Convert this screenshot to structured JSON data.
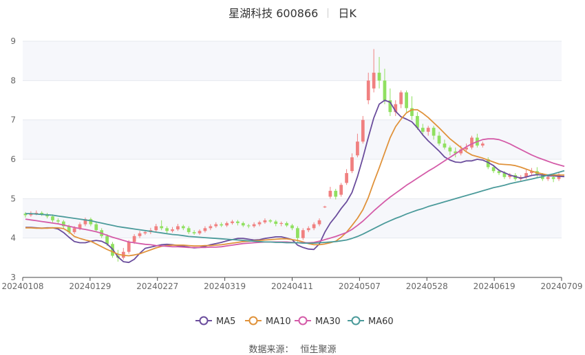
{
  "header": {
    "title": "星湖科技 600866",
    "period": "日K"
  },
  "source": {
    "label": "数据来源：",
    "value": "恒生聚源"
  },
  "colors": {
    "up": "#f08080",
    "down": "#90e060",
    "MA5": "#6a4c9c",
    "MA10": "#e0923a",
    "MA30": "#d45ba8",
    "MA60": "#4a9a9a",
    "grid": "#e6e8ee",
    "band": "#f6f7fb"
  },
  "chart_data": {
    "type": "candlestick",
    "ylim": [
      3,
      9
    ],
    "yticks": [
      3,
      4,
      5,
      6,
      7,
      8,
      9
    ],
    "xticks": [
      "20240108",
      "20240129",
      "20240227",
      "20240319",
      "20240411",
      "20240507",
      "20240528",
      "20240619",
      "20240709"
    ],
    "legend": [
      "MA5",
      "MA10",
      "MA30",
      "MA60"
    ],
    "legend_position": "bottom",
    "candles": [
      [
        4.62,
        4.58,
        4.66,
        4.52
      ],
      [
        4.58,
        4.62,
        4.68,
        4.54
      ],
      [
        4.62,
        4.64,
        4.7,
        4.58
      ],
      [
        4.64,
        4.6,
        4.68,
        4.56
      ],
      [
        4.6,
        4.55,
        4.64,
        4.5
      ],
      [
        4.55,
        4.45,
        4.6,
        4.4
      ],
      [
        4.45,
        4.42,
        4.5,
        4.36
      ],
      [
        4.42,
        4.3,
        4.46,
        4.25
      ],
      [
        4.3,
        4.15,
        4.34,
        4.1
      ],
      [
        4.15,
        4.25,
        4.3,
        4.1
      ],
      [
        4.25,
        4.35,
        4.4,
        4.2
      ],
      [
        4.35,
        4.48,
        4.52,
        4.3
      ],
      [
        4.48,
        4.35,
        4.52,
        4.3
      ],
      [
        4.35,
        4.2,
        4.4,
        4.15
      ],
      [
        4.2,
        4.05,
        4.25,
        4.0
      ],
      [
        4.05,
        3.85,
        4.1,
        3.8
      ],
      [
        3.85,
        3.55,
        3.9,
        3.5
      ],
      [
        3.55,
        3.5,
        3.7,
        3.4
      ],
      [
        3.5,
        3.65,
        3.75,
        3.45
      ],
      [
        3.65,
        3.9,
        3.95,
        3.6
      ],
      [
        3.9,
        4.05,
        4.1,
        3.85
      ],
      [
        4.05,
        4.12,
        4.18,
        4.0
      ],
      [
        4.12,
        4.15,
        4.2,
        4.08
      ],
      [
        4.15,
        4.2,
        4.26,
        4.1
      ],
      [
        4.2,
        4.3,
        4.36,
        4.15
      ],
      [
        4.3,
        4.25,
        4.45,
        4.2
      ],
      [
        4.25,
        4.18,
        4.3,
        4.12
      ],
      [
        4.18,
        4.22,
        4.28,
        4.14
      ],
      [
        4.22,
        4.3,
        4.36,
        4.18
      ],
      [
        4.3,
        4.25,
        4.34,
        4.2
      ],
      [
        4.25,
        4.15,
        4.3,
        4.1
      ],
      [
        4.15,
        4.12,
        4.2,
        4.08
      ],
      [
        4.12,
        4.18,
        4.22,
        4.08
      ],
      [
        4.18,
        4.25,
        4.3,
        4.14
      ],
      [
        4.25,
        4.3,
        4.35,
        4.2
      ],
      [
        4.3,
        4.35,
        4.4,
        4.26
      ],
      [
        4.35,
        4.32,
        4.4,
        4.28
      ],
      [
        4.32,
        4.38,
        4.42,
        4.28
      ],
      [
        4.38,
        4.42,
        4.46,
        4.34
      ],
      [
        4.42,
        4.38,
        4.46,
        4.32
      ],
      [
        4.38,
        4.32,
        4.42,
        4.28
      ],
      [
        4.32,
        4.3,
        4.36,
        4.25
      ],
      [
        4.3,
        4.35,
        4.4,
        4.26
      ],
      [
        4.35,
        4.4,
        4.44,
        4.3
      ],
      [
        4.4,
        4.45,
        4.5,
        4.36
      ],
      [
        4.45,
        4.42,
        4.48,
        4.38
      ],
      [
        4.42,
        4.36,
        4.46,
        4.3
      ],
      [
        4.36,
        4.38,
        4.42,
        4.3
      ],
      [
        4.38,
        4.32,
        4.42,
        4.28
      ],
      [
        4.32,
        4.25,
        4.36,
        4.2
      ],
      [
        4.25,
        4.0,
        4.3,
        3.9
      ],
      [
        4.0,
        4.2,
        4.25,
        3.95
      ],
      [
        4.2,
        4.25,
        4.3,
        4.15
      ],
      [
        4.25,
        4.35,
        4.4,
        4.2
      ],
      [
        4.35,
        4.45,
        4.5,
        4.3
      ],
      [
        4.78,
        4.8,
        4.82,
        4.76
      ],
      [
        5.05,
        5.2,
        5.3,
        5.0
      ],
      [
        5.2,
        5.05,
        5.25,
        4.98
      ],
      [
        5.1,
        5.35,
        5.4,
        5.05
      ],
      [
        5.4,
        5.65,
        5.75,
        5.35
      ],
      [
        5.7,
        6.05,
        6.15,
        5.65
      ],
      [
        6.1,
        6.45,
        6.65,
        6.05
      ],
      [
        6.45,
        7.0,
        7.1,
        6.4
      ],
      [
        7.5,
        8.0,
        8.2,
        7.4
      ],
      [
        7.8,
        8.2,
        8.8,
        7.7
      ],
      [
        8.2,
        8.0,
        8.6,
        7.8
      ],
      [
        8.0,
        7.5,
        8.3,
        7.4
      ],
      [
        7.5,
        7.2,
        7.8,
        7.1
      ],
      [
        7.2,
        7.4,
        7.5,
        7.1
      ],
      [
        7.4,
        7.7,
        7.75,
        7.3
      ],
      [
        7.7,
        7.3,
        7.75,
        7.2
      ],
      [
        7.3,
        7.1,
        7.6,
        7.0
      ],
      [
        7.1,
        6.8,
        7.2,
        6.75
      ],
      [
        6.8,
        6.7,
        6.9,
        6.6
      ],
      [
        6.7,
        6.8,
        6.85,
        6.6
      ],
      [
        6.8,
        6.6,
        6.85,
        6.5
      ],
      [
        6.6,
        6.4,
        6.7,
        6.35
      ],
      [
        6.4,
        6.3,
        6.5,
        6.25
      ],
      [
        6.3,
        6.2,
        6.35,
        6.1
      ],
      [
        6.2,
        6.15,
        6.3,
        6.05
      ],
      [
        6.15,
        6.25,
        6.35,
        6.1
      ],
      [
        6.25,
        6.3,
        6.4,
        6.2
      ],
      [
        6.3,
        6.55,
        6.6,
        6.25
      ],
      [
        6.55,
        6.35,
        6.65,
        6.3
      ],
      [
        6.35,
        6.4,
        6.45,
        6.3
      ],
      [
        6.0,
        5.8,
        6.05,
        5.75
      ],
      [
        5.8,
        5.7,
        5.85,
        5.65
      ],
      [
        5.7,
        5.65,
        5.75,
        5.6
      ],
      [
        5.65,
        5.55,
        5.7,
        5.5
      ],
      [
        5.55,
        5.6,
        5.65,
        5.5
      ],
      [
        5.6,
        5.5,
        5.65,
        5.45
      ],
      [
        5.5,
        5.55,
        5.6,
        5.45
      ],
      [
        5.55,
        5.65,
        5.75,
        5.5
      ],
      [
        5.65,
        5.7,
        5.78,
        5.6
      ],
      [
        5.7,
        5.6,
        5.8,
        5.55
      ],
      [
        5.6,
        5.5,
        5.65,
        5.45
      ],
      [
        5.5,
        5.55,
        5.62,
        5.45
      ],
      [
        5.55,
        5.5,
        5.6,
        5.42
      ],
      [
        5.5,
        5.62,
        5.68,
        5.45
      ]
    ],
    "series": [
      {
        "name": "MA5",
        "values": [
          4.27,
          4.27,
          4.26,
          4.25,
          4.26,
          4.26,
          4.23,
          4.14,
          4.02,
          3.91,
          3.88,
          3.88,
          3.92,
          3.94,
          3.92,
          3.85,
          3.72,
          3.52,
          3.4,
          3.38,
          3.46,
          3.61,
          3.74,
          3.77,
          3.8,
          3.83,
          3.84,
          3.83,
          3.81,
          3.79,
          3.77,
          3.75,
          3.76,
          3.79,
          3.83,
          3.86,
          3.89,
          3.93,
          3.96,
          3.99,
          3.99,
          3.97,
          3.95,
          3.96,
          3.99,
          4.01,
          4.03,
          4.03,
          4.0,
          3.96,
          3.82,
          3.76,
          3.72,
          3.71,
          3.85,
          4.15,
          4.38,
          4.55,
          4.75,
          4.92,
          5.16,
          5.56,
          6.04,
          6.56,
          7.05,
          7.4,
          7.5,
          7.45,
          7.22,
          7.08,
          7.02,
          6.95,
          6.8,
          6.62,
          6.47,
          6.34,
          6.21,
          6.06,
          5.98,
          5.93,
          5.92,
          5.96,
          5.96,
          6.0,
          5.98,
          5.92,
          5.84,
          5.72,
          5.66,
          5.6,
          5.56,
          5.52,
          5.55,
          5.59,
          5.61,
          5.6,
          5.58,
          5.58,
          5.57,
          5.56
        ]
      },
      {
        "name": "MA10",
        "values": [
          4.26,
          4.26,
          4.25,
          4.25,
          4.25,
          4.26,
          4.26,
          4.24,
          4.16,
          4.04,
          3.99,
          3.95,
          3.92,
          3.85,
          3.78,
          3.71,
          3.65,
          3.59,
          3.56,
          3.55,
          3.57,
          3.6,
          3.65,
          3.7,
          3.75,
          3.79,
          3.81,
          3.82,
          3.82,
          3.82,
          3.81,
          3.8,
          3.8,
          3.81,
          3.81,
          3.82,
          3.83,
          3.85,
          3.87,
          3.89,
          3.91,
          3.92,
          3.93,
          3.94,
          3.95,
          3.96,
          3.97,
          3.98,
          3.98,
          3.96,
          3.94,
          3.9,
          3.86,
          3.83,
          3.83,
          3.85,
          3.88,
          3.92,
          4.02,
          4.15,
          4.32,
          4.5,
          4.72,
          5.03,
          5.42,
          5.78,
          6.17,
          6.55,
          6.83,
          7.02,
          7.18,
          7.26,
          7.26,
          7.17,
          7.06,
          6.93,
          6.8,
          6.66,
          6.52,
          6.41,
          6.3,
          6.19,
          6.11,
          6.07,
          6.03,
          5.98,
          5.93,
          5.88,
          5.87,
          5.86,
          5.84,
          5.8,
          5.75,
          5.7,
          5.66,
          5.63,
          5.6,
          5.6,
          5.6,
          5.6
        ]
      },
      {
        "name": "MA30",
        "values": [
          4.48,
          4.46,
          4.44,
          4.42,
          4.4,
          4.38,
          4.36,
          4.33,
          4.3,
          4.27,
          4.24,
          4.22,
          4.19,
          4.16,
          4.12,
          4.07,
          4.02,
          3.98,
          3.94,
          3.9,
          3.88,
          3.86,
          3.84,
          3.83,
          3.81,
          3.8,
          3.79,
          3.78,
          3.78,
          3.77,
          3.76,
          3.76,
          3.76,
          3.76,
          3.77,
          3.77,
          3.78,
          3.8,
          3.82,
          3.84,
          3.86,
          3.87,
          3.88,
          3.89,
          3.9,
          3.9,
          3.9,
          3.9,
          3.9,
          3.89,
          3.88,
          3.88,
          3.88,
          3.89,
          3.92,
          3.96,
          4.0,
          4.04,
          4.09,
          4.14,
          4.22,
          4.32,
          4.43,
          4.56,
          4.69,
          4.81,
          4.93,
          5.04,
          5.14,
          5.24,
          5.34,
          5.43,
          5.52,
          5.61,
          5.7,
          5.78,
          5.87,
          5.96,
          6.05,
          6.14,
          6.23,
          6.32,
          6.39,
          6.45,
          6.5,
          6.52,
          6.52,
          6.5,
          6.45,
          6.39,
          6.32,
          6.25,
          6.18,
          6.11,
          6.05,
          6.0,
          5.95,
          5.9,
          5.86,
          5.82
        ]
      },
      {
        "name": "MA60",
        "values": [
          4.62,
          4.62,
          4.61,
          4.6,
          4.59,
          4.58,
          4.56,
          4.54,
          4.52,
          4.5,
          4.48,
          4.46,
          4.44,
          4.41,
          4.38,
          4.35,
          4.32,
          4.29,
          4.27,
          4.25,
          4.23,
          4.21,
          4.19,
          4.17,
          4.15,
          4.13,
          4.11,
          4.09,
          4.08,
          4.06,
          4.04,
          4.03,
          4.02,
          4.01,
          4.0,
          3.99,
          3.98,
          3.97,
          3.96,
          3.95,
          3.94,
          3.93,
          3.92,
          3.91,
          3.9,
          3.9,
          3.89,
          3.89,
          3.88,
          3.88,
          3.88,
          3.87,
          3.87,
          3.87,
          3.88,
          3.89,
          3.9,
          3.91,
          3.93,
          3.95,
          3.99,
          4.04,
          4.1,
          4.17,
          4.24,
          4.31,
          4.38,
          4.44,
          4.5,
          4.55,
          4.61,
          4.66,
          4.71,
          4.75,
          4.8,
          4.84,
          4.88,
          4.92,
          4.96,
          5.0,
          5.04,
          5.08,
          5.12,
          5.16,
          5.2,
          5.24,
          5.28,
          5.31,
          5.34,
          5.38,
          5.41,
          5.44,
          5.47,
          5.5,
          5.53,
          5.56,
          5.6,
          5.63,
          5.67,
          5.71
        ]
      }
    ]
  }
}
